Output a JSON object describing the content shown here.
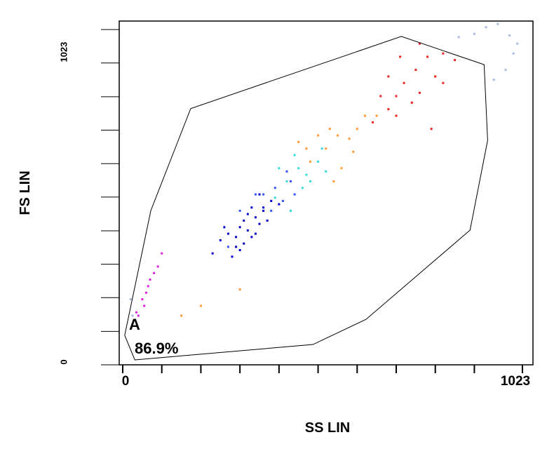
{
  "chart_data": {
    "type": "scatter",
    "xlabel": "SS LIN",
    "ylabel": "FS LIN",
    "xlim": [
      -9,
      1050
    ],
    "ylim": [
      0,
      1049
    ],
    "xticks": [
      0,
      1023
    ],
    "yticks": [
      0,
      1023
    ],
    "xminor_ticks": [
      100,
      200,
      300,
      400,
      500,
      600,
      700,
      800,
      900
    ],
    "yminor_ticks": [
      102,
      205,
      307,
      409,
      512,
      614,
      716,
      818,
      921
    ],
    "series": [
      {
        "color": "#0000cc",
        "x": [
          250,
          270,
          290,
          300,
          310,
          320,
          330,
          340,
          350,
          360,
          280,
          300,
          320,
          340,
          360,
          380,
          260,
          310,
          330,
          370,
          290,
          350,
          230,
          400
        ],
        "y": [
          380,
          400,
          360,
          420,
          440,
          410,
          390,
          450,
          430,
          470,
          330,
          350,
          460,
          400,
          480,
          500,
          420,
          370,
          480,
          440,
          390,
          520,
          340,
          490
        ]
      },
      {
        "color": "#3355ff",
        "x": [
          360,
          390,
          410,
          430,
          380,
          420,
          440,
          300,
          270,
          340
        ],
        "y": [
          520,
          540,
          500,
          560,
          470,
          590,
          520,
          470,
          360,
          520
        ]
      },
      {
        "color": "#33dddd",
        "x": [
          420,
          450,
          470,
          500,
          440,
          480,
          520,
          460,
          400,
          510,
          390,
          430
        ],
        "y": [
          560,
          600,
          580,
          620,
          640,
          560,
          590,
          540,
          600,
          660,
          510,
          470
        ]
      },
      {
        "color": "#ff9933",
        "x": [
          480,
          520,
          550,
          580,
          600,
          530,
          560,
          620,
          500,
          470,
          650,
          590,
          450,
          300,
          200,
          150,
          540
        ],
        "y": [
          620,
          660,
          700,
          690,
          720,
          720,
          600,
          760,
          700,
          660,
          760,
          650,
          680,
          230,
          180,
          150,
          560
        ]
      },
      {
        "color": "#ee2222",
        "x": [
          640,
          680,
          700,
          720,
          750,
          780,
          800,
          820,
          700,
          660,
          740,
          760,
          820,
          850,
          790,
          710,
          680,
          760
        ],
        "y": [
          740,
          780,
          820,
          860,
          900,
          940,
          880,
          860,
          760,
          820,
          800,
          980,
          950,
          930,
          720,
          940,
          880,
          830
        ]
      },
      {
        "color": "#dd22dd",
        "x": [
          40,
          55,
          60,
          70,
          80,
          50,
          90,
          100,
          65,
          35
        ],
        "y": [
          150,
          180,
          220,
          260,
          280,
          200,
          300,
          340,
          240,
          160
        ]
      },
      {
        "color": "#aabbdd",
        "x": [
          860,
          900,
          930,
          960,
          990,
          1000,
          1010,
          980,
          950,
          20,
          25
        ],
        "y": [
          1000,
          1010,
          1030,
          1040,
          1005,
          950,
          980,
          900,
          870,
          200,
          150
        ]
      }
    ],
    "gate": {
      "label": "A",
      "value": 86.9,
      "value_label": "86.9%",
      "x": [
        5,
        72,
        174,
        713,
        925,
        934,
        889,
        623,
        487,
        31
      ],
      "y": [
        90,
        471,
        782,
        1002,
        916,
        685,
        411,
        139,
        62,
        15
      ]
    }
  }
}
